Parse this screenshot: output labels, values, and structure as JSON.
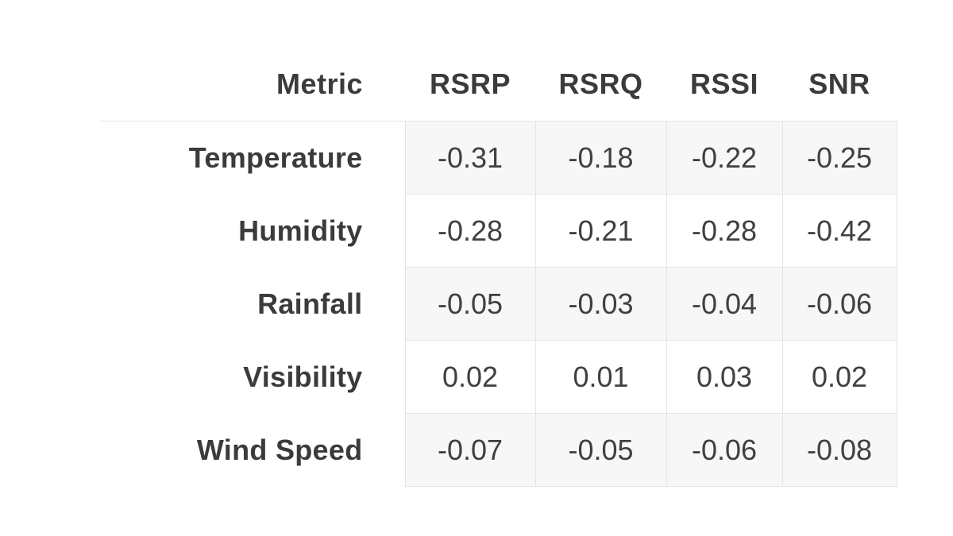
{
  "table": {
    "header": {
      "metric": "Metric",
      "columns": [
        "RSRP",
        "RSRQ",
        "RSSI",
        "SNR"
      ]
    },
    "rows": [
      {
        "label": "Temperature",
        "values": [
          "-0.31",
          "-0.18",
          "-0.22",
          "-0.25"
        ]
      },
      {
        "label": "Humidity",
        "values": [
          "-0.28",
          "-0.21",
          "-0.28",
          "-0.42"
        ]
      },
      {
        "label": "Rainfall",
        "values": [
          "-0.05",
          "-0.03",
          "-0.04",
          "-0.06"
        ]
      },
      {
        "label": "Visibility",
        "values": [
          "0.02",
          "0.01",
          "0.03",
          "0.02"
        ]
      },
      {
        "label": "Wind Speed",
        "values": [
          "-0.07",
          "-0.05",
          "-0.06",
          "-0.08"
        ]
      }
    ],
    "colors": {
      "text": "#3b3b3b",
      "stripe": "#f7f7f8",
      "border": "#e3e4e5",
      "background": "#ffffff"
    }
  },
  "chart_data": {
    "type": "table",
    "title": "",
    "columns": [
      "Metric",
      "RSRP",
      "RSRQ",
      "RSSI",
      "SNR"
    ],
    "rows": [
      [
        "Temperature",
        -0.31,
        -0.18,
        -0.22,
        -0.25
      ],
      [
        "Humidity",
        -0.28,
        -0.21,
        -0.28,
        -0.42
      ],
      [
        "Rainfall",
        -0.05,
        -0.03,
        -0.04,
        -0.06
      ],
      [
        "Visibility",
        0.02,
        0.01,
        0.03,
        0.02
      ],
      [
        "Wind Speed",
        -0.07,
        -0.05,
        -0.06,
        -0.08
      ]
    ],
    "layout": {
      "striped_rows": "odd",
      "label_column_align": "right",
      "value_align": "center"
    }
  }
}
